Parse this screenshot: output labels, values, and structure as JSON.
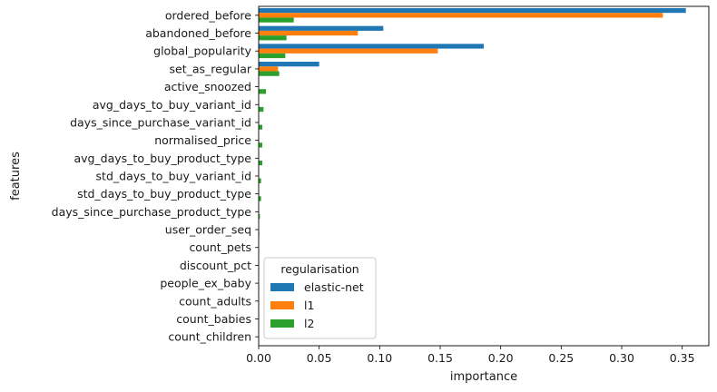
{
  "chart_data": {
    "type": "bar",
    "orientation": "horizontal",
    "xlabel": "importance",
    "ylabel": "features",
    "xlim": [
      0,
      0.372
    ],
    "xticks": [
      "0.00",
      "0.05",
      "0.10",
      "0.15",
      "0.20",
      "0.25",
      "0.30",
      "0.35"
    ],
    "grid": false,
    "legend_position": "lower-left",
    "categories": [
      "ordered_before",
      "abandoned_before",
      "global_popularity",
      "set_as_regular",
      "active_snoozed",
      "avg_days_to_buy_variant_id",
      "days_since_purchase_variant_id",
      "normalised_price",
      "avg_days_to_buy_product_type",
      "std_days_to_buy_variant_id",
      "std_days_to_buy_product_type",
      "days_since_purchase_product_type",
      "user_order_seq",
      "count_pets",
      "discount_pct",
      "people_ex_baby",
      "count_adults",
      "count_babies",
      "count_children"
    ],
    "legend_title": "regularisation",
    "series": [
      {
        "name": "elastic-net",
        "color": "#1f77b4",
        "values": [
          0.353,
          0.103,
          0.186,
          0.05,
          0,
          0,
          0,
          0,
          0,
          0,
          0,
          0,
          0,
          0,
          0,
          0,
          0,
          0,
          0
        ]
      },
      {
        "name": "l1",
        "color": "#ff7f0e",
        "values": [
          0.334,
          0.082,
          0.148,
          0.016,
          0,
          0,
          0,
          0,
          0,
          0,
          0,
          0,
          0,
          0,
          0,
          0,
          0,
          0,
          0
        ]
      },
      {
        "name": "l2",
        "color": "#2ca02c",
        "values": [
          0.029,
          0.023,
          0.022,
          0.017,
          0.006,
          0.004,
          0.003,
          0.003,
          0.003,
          0.002,
          0.002,
          0.001,
          0.0005,
          0.0003,
          0.0003,
          0.0003,
          0.0002,
          0.0002,
          0.0002
        ]
      }
    ]
  }
}
